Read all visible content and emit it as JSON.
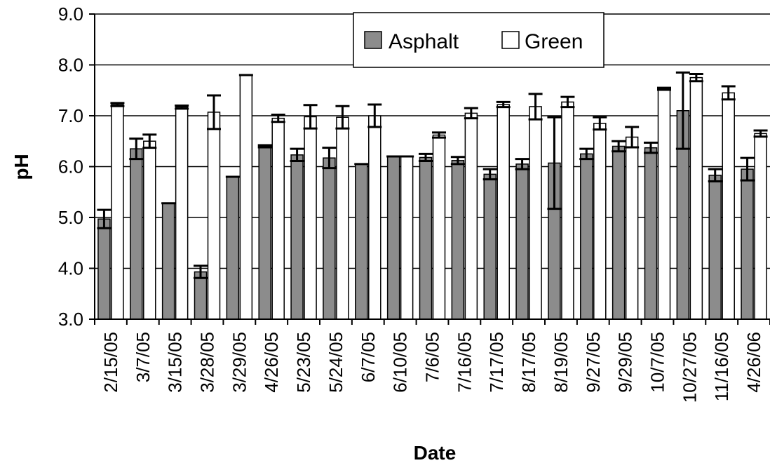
{
  "chart_data": {
    "type": "bar",
    "title": "",
    "xlabel": "Date",
    "ylabel": "pH",
    "ylim": [
      3.0,
      9.0
    ],
    "yticks": [
      "3.0",
      "4.0",
      "5.0",
      "6.0",
      "7.0",
      "8.0",
      "9.0"
    ],
    "grid": "horizontal",
    "legend": "top-right",
    "categories": [
      "2/15/05",
      "3/7/05",
      "3/15/05",
      "3/28/05",
      "3/29/05",
      "4/26/05",
      "5/23/05",
      "5/24/05",
      "6/7/05",
      "6/10/05",
      "7/6/05",
      "7/16/05",
      "7/17/05",
      "8/17/05",
      "8/19/05",
      "9/27/05",
      "9/29/05",
      "10/7/05",
      "10/27/05",
      "11/16/05",
      "4/26/06"
    ],
    "series": [
      {
        "name": "Asphalt",
        "color": "#8c8c8c",
        "values": [
          4.97,
          6.35,
          5.28,
          3.93,
          5.8,
          6.4,
          6.23,
          6.17,
          6.05,
          6.2,
          6.18,
          6.12,
          5.85,
          6.05,
          6.07,
          6.25,
          6.4,
          6.37,
          7.1,
          5.83,
          5.95
        ],
        "errors": [
          0.18,
          0.2,
          0,
          0.12,
          0,
          0.02,
          0.12,
          0.2,
          0,
          0,
          0.07,
          0.07,
          0.1,
          0.1,
          0.9,
          0.1,
          0.1,
          0.1,
          0.75,
          0.12,
          0.22
        ]
      },
      {
        "name": "Green",
        "color": "#ffffff",
        "values": [
          7.22,
          6.5,
          7.17,
          7.07,
          7.8,
          6.95,
          6.98,
          6.97,
          7.0,
          6.2,
          6.62,
          7.05,
          7.22,
          7.18,
          7.27,
          6.85,
          6.58,
          7.53,
          7.75,
          7.45,
          6.65
        ],
        "errors": [
          0.03,
          0.13,
          0.03,
          0.33,
          0,
          0.07,
          0.23,
          0.22,
          0.22,
          0,
          0.05,
          0.1,
          0.05,
          0.25,
          0.1,
          0.12,
          0.2,
          0.02,
          0.07,
          0.13,
          0.06
        ]
      }
    ]
  }
}
